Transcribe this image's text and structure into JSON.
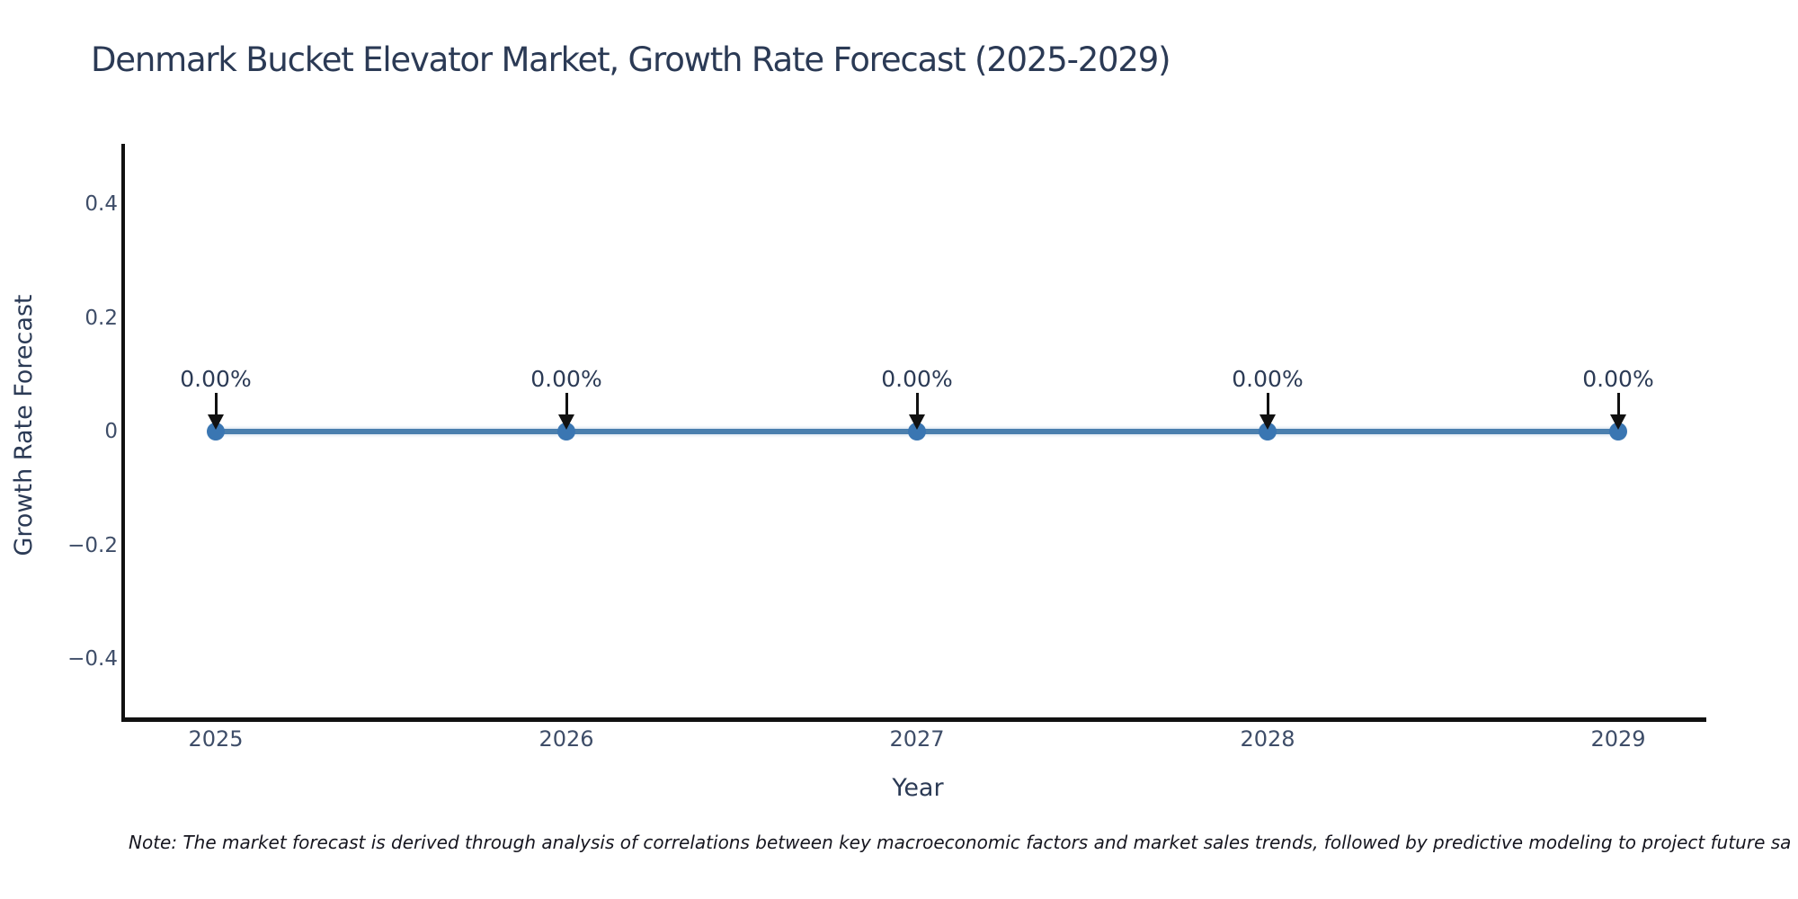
{
  "header": {
    "title": "Denmark Bucket Elevator Market, Growth Rate Forecast (2025-2029)"
  },
  "chart_data": {
    "type": "line",
    "title": "Denmark Bucket Elevator Market, Growth Rate Forecast (2025-2029)",
    "xlabel": "Year",
    "ylabel": "Growth Rate Forecast",
    "categories": [
      "2025",
      "2026",
      "2027",
      "2028",
      "2029"
    ],
    "series": [
      {
        "name": "Growth Rate Forecast",
        "values": [
          0,
          0,
          0,
          0,
          0
        ]
      }
    ],
    "point_labels": [
      "0.00%",
      "0.00%",
      "0.00%",
      "0.00%",
      "0.00%"
    ],
    "ylim": [
      -0.51,
      0.51
    ],
    "yticks": [
      0.4,
      0.2,
      0,
      -0.2,
      -0.4
    ],
    "ytick_labels": [
      "0.4",
      "0.2",
      "0",
      "−0.2",
      "−0.4"
    ],
    "grid": false,
    "legend": false,
    "marker_style": "circle",
    "annotation_arrows": true
  },
  "note": {
    "text": "Note: The market forecast is derived through analysis of correlations between key macroeconomic factors and market sales trends, followed by predictive modeling to project future sa"
  },
  "colors": {
    "background": "#ffffff",
    "title_text": "#2b3a55",
    "tick_text": "#3e4d68",
    "axis": "#111111",
    "line": "#4a7fae",
    "marker": "#3a76b2",
    "arrow": "#111111",
    "annotation_text": "#2b3a55",
    "note_text": "#16161f"
  }
}
